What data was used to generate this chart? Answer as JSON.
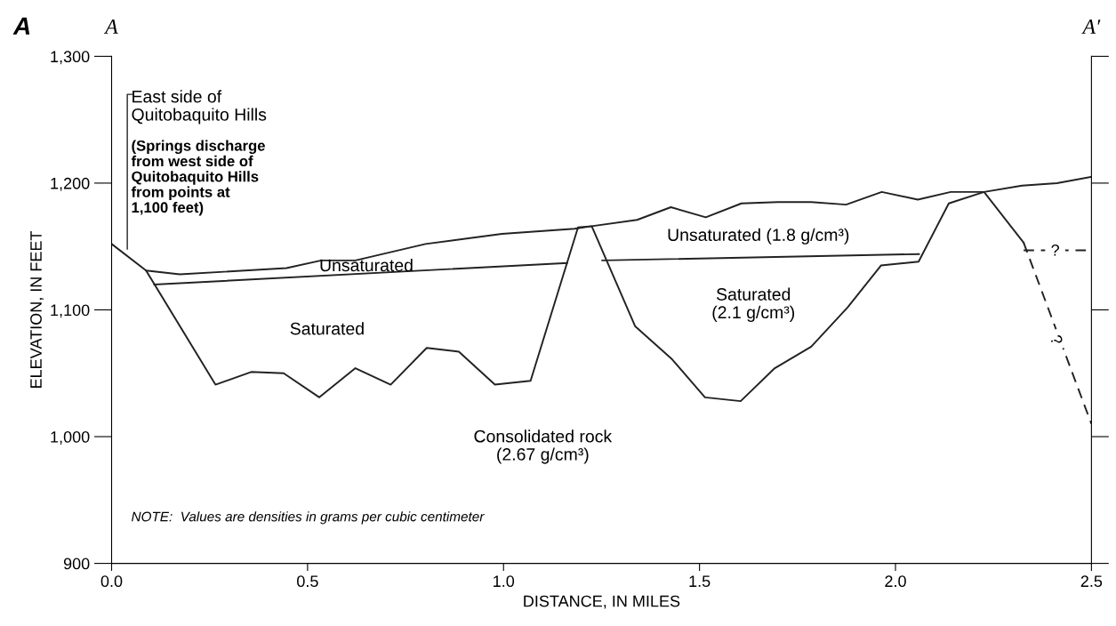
{
  "chart_data": {
    "type": "line",
    "xlabel": "DISTANCE, IN MILES",
    "ylabel": "ELEVATION, IN FEET",
    "xlim": [
      0,
      2.5
    ],
    "ylim": [
      900,
      1300
    ],
    "xticks": [
      {
        "value": 0,
        "label": "0.0"
      },
      {
        "value": 0.5,
        "label": "0.5"
      },
      {
        "value": 1,
        "label": "1.0"
      },
      {
        "value": 1.5,
        "label": "1.5"
      },
      {
        "value": 2,
        "label": "2.0"
      },
      {
        "value": 2.5,
        "label": "2.5"
      }
    ],
    "yticks": [
      {
        "value": 900,
        "label": "900"
      },
      {
        "value": 1000,
        "label": "1,000"
      },
      {
        "value": 1100,
        "label": "1,100"
      },
      {
        "value": 1200,
        "label": "1,200"
      },
      {
        "value": 1300,
        "label": "1,300"
      }
    ],
    "grid": false,
    "legend": false,
    "marker": "none",
    "series": [
      {
        "color": "#222222",
        "line_style": "solid",
        "x": [
          0,
          0.088,
          0.174,
          0.446,
          0.535,
          0.622,
          0.801,
          0.996,
          1.181,
          1.225,
          1.341,
          1.427,
          1.516,
          1.607,
          1.7,
          1.785,
          1.874,
          1.965,
          2.057,
          2.141,
          2.226,
          2.323,
          2.412,
          2.5
        ],
        "values": [
          1152,
          1131,
          1128,
          1133,
          1139,
          1139,
          1152,
          1160,
          1164,
          1166,
          1171,
          1181,
          1173,
          1184,
          1185,
          1185,
          1183,
          1193,
          1187,
          1193,
          1193,
          1198,
          1200,
          1205
        ]
      },
      {
        "color": "#222222",
        "line_style": "solid",
        "x": [
          0.109,
          1.162
        ],
        "values": [
          1120,
          1137
        ]
      },
      {
        "color": "#222222",
        "line_style": "solid",
        "x": [
          1.252,
          2.06
        ],
        "values": [
          1139,
          1144
        ]
      },
      {
        "color": "#222222",
        "line_style": "solid",
        "x": [
          0.088,
          0.265,
          0.356,
          0.439,
          0.53,
          0.622,
          0.712,
          0.804,
          0.886,
          0.978,
          1.069,
          1.19,
          1.225,
          1.336,
          1.43,
          1.514,
          1.605,
          1.692,
          1.785,
          1.878,
          1.963,
          2.059,
          2.136,
          2.226,
          2.327
        ],
        "values": [
          1131,
          1041,
          1051,
          1050,
          1031,
          1054,
          1041,
          1070,
          1067,
          1041,
          1044,
          1165,
          1166,
          1087,
          1061,
          1031,
          1028,
          1054,
          1071,
          1102,
          1135,
          1138,
          1184,
          1193,
          1153
        ]
      },
      {
        "color": "#222222",
        "line_style": "dashed",
        "x": [
          2.327,
          2.5
        ],
        "values": [
          1153,
          1010
        ]
      },
      {
        "color": "#222222",
        "line_style": "dashed",
        "x": [
          2.327,
          2.5
        ],
        "values": [
          1147,
          1147
        ]
      }
    ],
    "annotations": [
      "East side of\nQuitobaquito Hills",
      "(Springs discharge\nfrom west side of\nQuitobaquito Hills\nfrom points at\n1,100 feet)",
      "Unsaturated",
      "Saturated",
      "Unsaturated (1.8 g/cm³)",
      "Saturated\n(2.1 g/cm³)",
      "Consolidated rock\n(2.67 g/cm³)",
      "?",
      "?",
      "NOTE:  Values are densities in grams per cubic centimeter",
      "A",
      "A",
      "A′"
    ]
  }
}
